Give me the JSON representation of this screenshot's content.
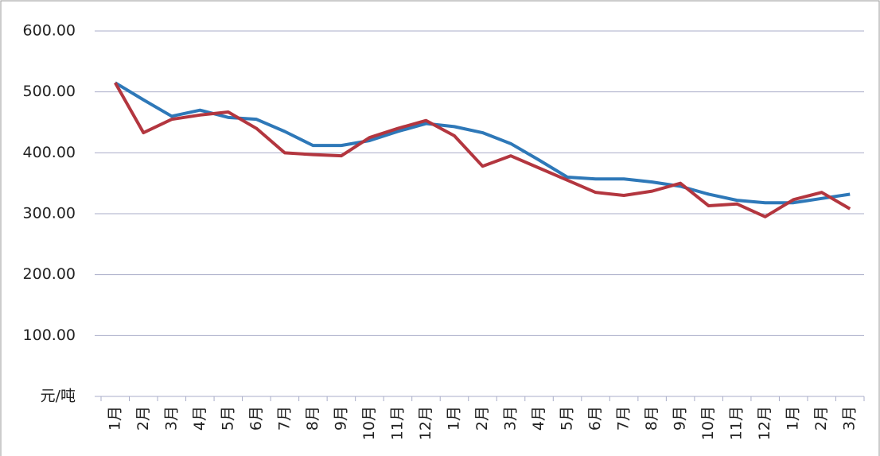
{
  "chart_data": {
    "type": "line",
    "categories": [
      "1月",
      "2月",
      "3月",
      "4月",
      "5月",
      "6月",
      "7月",
      "8月",
      "9月",
      "10月",
      "11月",
      "12月",
      "1月",
      "2月",
      "3月",
      "4月",
      "5月",
      "6月",
      "7月",
      "8月",
      "9月",
      "10月",
      "11月",
      "12月",
      "1月",
      "2月",
      "3月"
    ],
    "series": [
      {
        "color": "#2e78b8",
        "values": [
          515,
          487,
          460,
          470,
          458,
          455,
          435,
          412,
          412,
          420,
          435,
          448,
          443,
          433,
          415,
          388,
          360,
          357,
          357,
          352,
          345,
          332,
          322,
          318,
          318,
          325,
          332
        ]
      },
      {
        "color": "#b3363f",
        "values": [
          515,
          433,
          455,
          462,
          467,
          440,
          400,
          397,
          395,
          425,
          440,
          453,
          428,
          378,
          395,
          375,
          355,
          335,
          330,
          337,
          350,
          313,
          316,
          295,
          323,
          335,
          308
        ]
      }
    ],
    "ylim": [
      0,
      600
    ],
    "yticks": [
      {
        "value": 0,
        "label": "元/吨"
      },
      {
        "value": 100,
        "label": "100.00"
      },
      {
        "value": 200,
        "label": "200.00"
      },
      {
        "value": 300,
        "label": "300.00"
      },
      {
        "value": 400,
        "label": "400.00"
      },
      {
        "value": 500,
        "label": "500.00"
      },
      {
        "value": 600,
        "label": "600.00"
      }
    ],
    "grid": true
  }
}
